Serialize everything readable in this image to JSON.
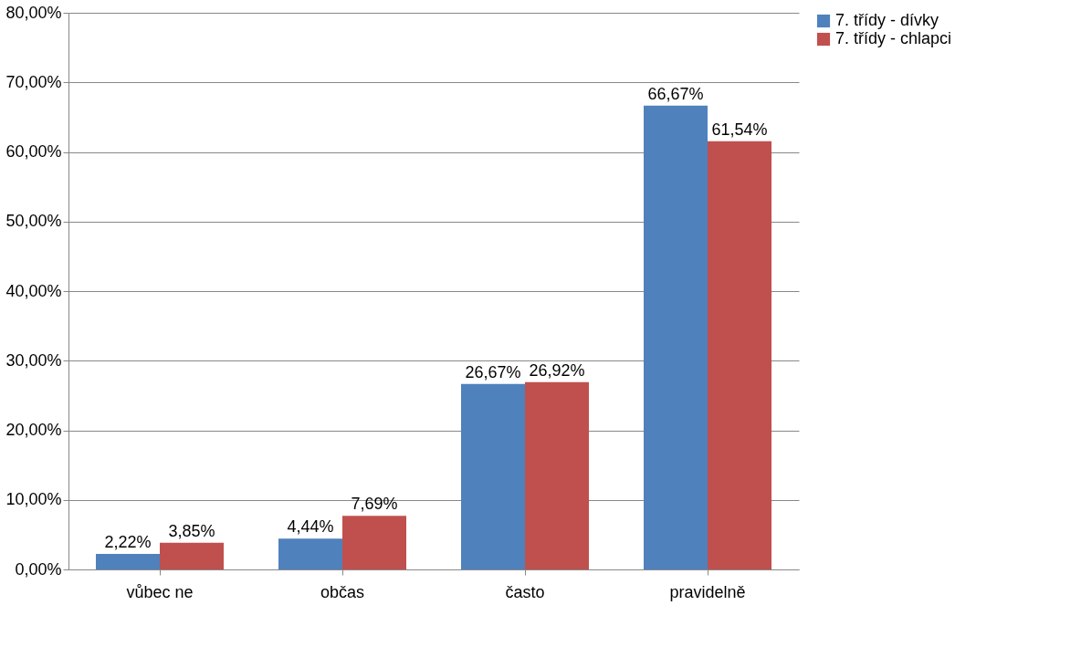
{
  "chart_data": {
    "type": "bar",
    "categories": [
      "vůbec ne",
      "občas",
      "často",
      "pravidelně"
    ],
    "series": [
      {
        "name": "7. třídy - dívky",
        "color": "#4f81bd",
        "values": [
          2.22,
          4.44,
          26.67,
          66.67
        ],
        "value_labels": [
          "2,22%",
          "4,44%",
          "26,67%",
          "66,67%"
        ]
      },
      {
        "name": "7. třídy -  chlapci",
        "color": "#c0504d",
        "values": [
          3.85,
          7.69,
          26.92,
          61.54
        ],
        "value_labels": [
          "3,85%",
          "7,69%",
          "26,92%",
          "61,54%"
        ]
      }
    ],
    "ylim": [
      0,
      80
    ],
    "yticks": [
      {
        "value": 0,
        "label": "0,00%"
      },
      {
        "value": 10,
        "label": "10,00%"
      },
      {
        "value": 20,
        "label": "20,00%"
      },
      {
        "value": 30,
        "label": "30,00%"
      },
      {
        "value": 40,
        "label": "40,00%"
      },
      {
        "value": 50,
        "label": "50,00%"
      },
      {
        "value": 60,
        "label": "60,00%"
      },
      {
        "value": 70,
        "label": "70,00%"
      },
      {
        "value": 80,
        "label": "80,00%"
      }
    ],
    "grid": "y",
    "legend": "right"
  }
}
